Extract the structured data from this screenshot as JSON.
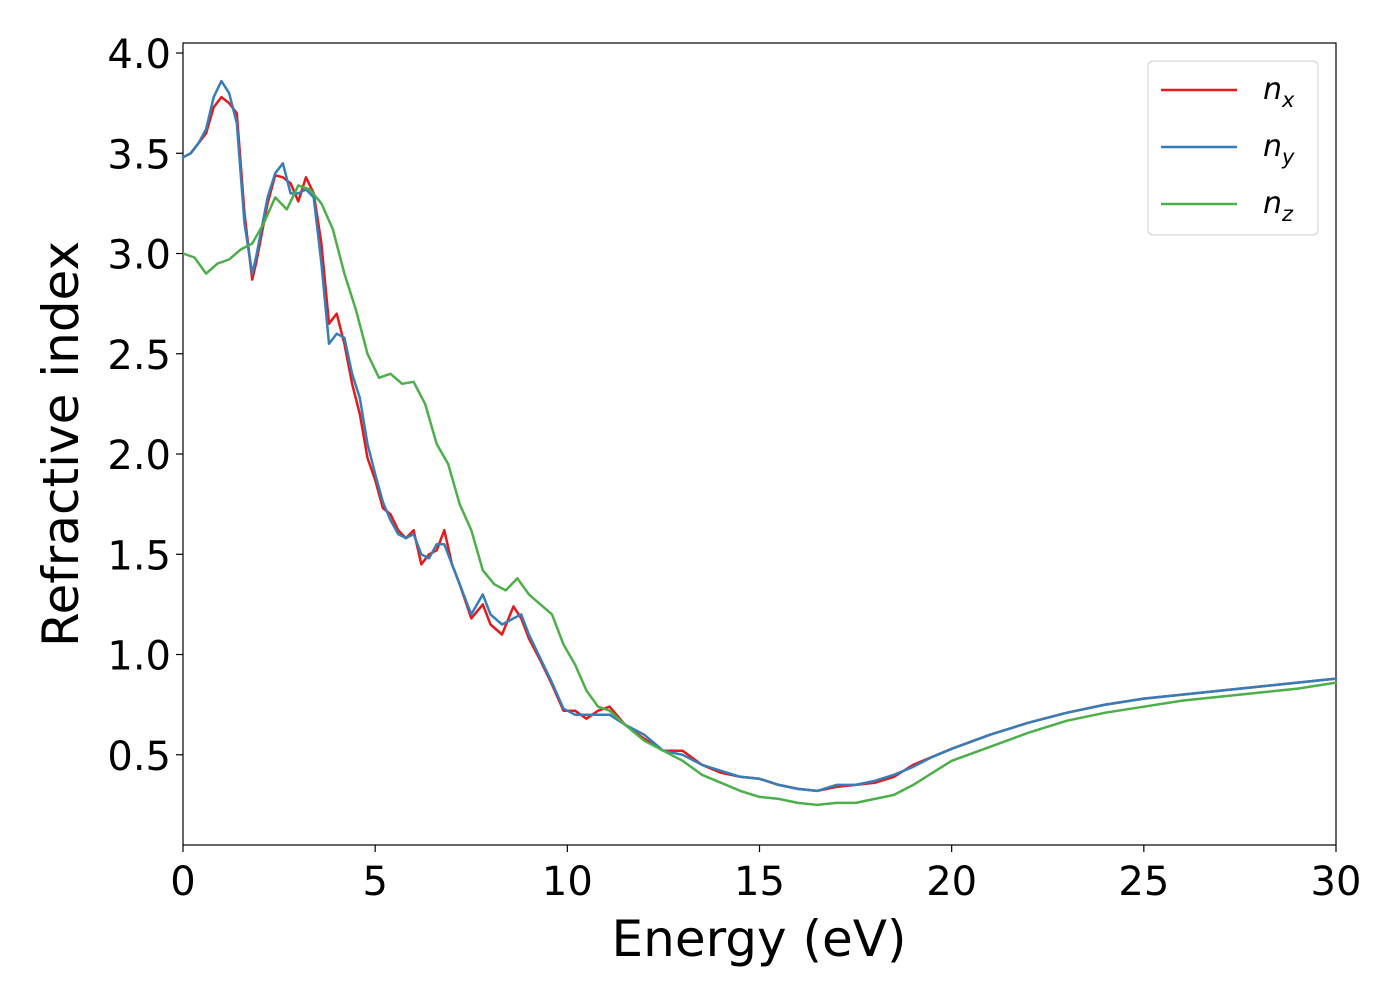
{
  "chart_data": {
    "type": "line",
    "xlabel": "Energy (eV)",
    "ylabel": "Refractive index",
    "xlim": [
      0,
      30
    ],
    "ylim": [
      0.05,
      4.05
    ],
    "xticks": [
      0,
      5,
      10,
      15,
      20,
      25,
      30
    ],
    "xtick_labels": [
      "0",
      "5",
      "10",
      "15",
      "20",
      "25",
      "30"
    ],
    "yticks": [
      0.5,
      1.0,
      1.5,
      2.0,
      2.5,
      3.0,
      3.5,
      4.0
    ],
    "ytick_labels": [
      "0.5",
      "1.0",
      "1.5",
      "2.0",
      "2.5",
      "3.0",
      "3.5",
      "4.0"
    ],
    "grid": false,
    "legend_position": "top-right",
    "series": [
      {
        "name": "n_x",
        "label_main": "n",
        "label_sub": "x",
        "color": "#e41a1c",
        "x": [
          0,
          0.2,
          0.4,
          0.6,
          0.8,
          1.0,
          1.2,
          1.4,
          1.6,
          1.8,
          1.9,
          2.0,
          2.2,
          2.4,
          2.6,
          2.8,
          3.0,
          3.2,
          3.4,
          3.6,
          3.8,
          4.0,
          4.2,
          4.4,
          4.6,
          4.8,
          5.0,
          5.2,
          5.4,
          5.6,
          5.8,
          6.0,
          6.2,
          6.4,
          6.6,
          6.8,
          7.0,
          7.2,
          7.5,
          7.8,
          8.0,
          8.3,
          8.6,
          8.8,
          9.0,
          9.3,
          9.6,
          9.9,
          10.2,
          10.5,
          10.8,
          11.1,
          11.5,
          12.0,
          12.5,
          13.0,
          13.5,
          14.0,
          14.5,
          15.0,
          15.5,
          16.0,
          16.5,
          17.0,
          17.5,
          18.0,
          18.5,
          19.0,
          19.5,
          20.0,
          21.0,
          22.0,
          23.0,
          24.0,
          25.0,
          26.0,
          27.0,
          28.0,
          29.0,
          30.0
        ],
        "y": [
          3.48,
          3.5,
          3.55,
          3.6,
          3.73,
          3.78,
          3.75,
          3.7,
          3.2,
          2.87,
          2.95,
          3.05,
          3.25,
          3.39,
          3.38,
          3.35,
          3.26,
          3.38,
          3.3,
          3.05,
          2.65,
          2.7,
          2.55,
          2.35,
          2.2,
          1.98,
          1.87,
          1.73,
          1.7,
          1.62,
          1.58,
          1.62,
          1.45,
          1.5,
          1.52,
          1.62,
          1.45,
          1.35,
          1.18,
          1.25,
          1.15,
          1.1,
          1.24,
          1.18,
          1.08,
          0.97,
          0.85,
          0.72,
          0.72,
          0.68,
          0.72,
          0.74,
          0.65,
          0.58,
          0.52,
          0.52,
          0.45,
          0.41,
          0.39,
          0.38,
          0.35,
          0.33,
          0.32,
          0.34,
          0.35,
          0.36,
          0.39,
          0.45,
          0.49,
          0.53,
          0.6,
          0.66,
          0.71,
          0.75,
          0.78,
          0.8,
          0.82,
          0.84,
          0.86,
          0.88
        ]
      },
      {
        "name": "n_y",
        "label_main": "n",
        "label_sub": "y",
        "color": "#377eb8",
        "x": [
          0,
          0.2,
          0.4,
          0.6,
          0.8,
          1.0,
          1.2,
          1.4,
          1.6,
          1.8,
          1.9,
          2.0,
          2.2,
          2.4,
          2.6,
          2.8,
          3.0,
          3.2,
          3.4,
          3.6,
          3.8,
          4.0,
          4.2,
          4.4,
          4.6,
          4.8,
          5.0,
          5.2,
          5.4,
          5.6,
          5.8,
          6.0,
          6.2,
          6.4,
          6.6,
          6.8,
          7.0,
          7.2,
          7.5,
          7.8,
          8.0,
          8.3,
          8.6,
          8.8,
          9.0,
          9.3,
          9.6,
          9.9,
          10.2,
          10.5,
          10.8,
          11.1,
          11.5,
          12.0,
          12.5,
          13.0,
          13.5,
          14.0,
          14.5,
          15.0,
          15.5,
          16.0,
          16.5,
          17.0,
          17.5,
          18.0,
          18.5,
          19.0,
          19.5,
          20.0,
          21.0,
          22.0,
          23.0,
          24.0,
          25.0,
          26.0,
          27.0,
          28.0,
          29.0,
          30.0
        ],
        "y": [
          3.48,
          3.5,
          3.55,
          3.62,
          3.78,
          3.86,
          3.8,
          3.65,
          3.15,
          2.9,
          2.98,
          3.08,
          3.28,
          3.4,
          3.45,
          3.3,
          3.3,
          3.32,
          3.28,
          2.95,
          2.55,
          2.6,
          2.58,
          2.4,
          2.28,
          2.05,
          1.9,
          1.76,
          1.67,
          1.6,
          1.58,
          1.6,
          1.5,
          1.48,
          1.55,
          1.55,
          1.45,
          1.35,
          1.2,
          1.3,
          1.2,
          1.15,
          1.18,
          1.2,
          1.1,
          0.98,
          0.86,
          0.73,
          0.7,
          0.7,
          0.7,
          0.7,
          0.65,
          0.6,
          0.52,
          0.5,
          0.45,
          0.42,
          0.39,
          0.38,
          0.35,
          0.33,
          0.32,
          0.35,
          0.35,
          0.37,
          0.4,
          0.44,
          0.49,
          0.53,
          0.6,
          0.66,
          0.71,
          0.75,
          0.78,
          0.8,
          0.82,
          0.84,
          0.86,
          0.88
        ]
      },
      {
        "name": "n_z",
        "label_main": "n",
        "label_sub": "z",
        "color": "#4daf4a",
        "x": [
          0,
          0.3,
          0.6,
          0.9,
          1.2,
          1.5,
          1.8,
          2.1,
          2.4,
          2.7,
          3.0,
          3.3,
          3.6,
          3.9,
          4.2,
          4.5,
          4.8,
          5.1,
          5.4,
          5.7,
          6.0,
          6.3,
          6.6,
          6.9,
          7.2,
          7.5,
          7.8,
          8.1,
          8.4,
          8.7,
          9.0,
          9.3,
          9.6,
          9.9,
          10.2,
          10.5,
          10.8,
          11.1,
          11.5,
          12.0,
          12.5,
          13.0,
          13.5,
          14.0,
          14.5,
          15.0,
          15.5,
          16.0,
          16.5,
          17.0,
          17.5,
          18.0,
          18.5,
          19.0,
          19.5,
          20.0,
          21.0,
          22.0,
          23.0,
          24.0,
          25.0,
          26.0,
          27.0,
          28.0,
          29.0,
          30.0
        ],
        "y": [
          3.0,
          2.98,
          2.9,
          2.95,
          2.97,
          3.02,
          3.05,
          3.15,
          3.28,
          3.22,
          3.34,
          3.32,
          3.25,
          3.12,
          2.9,
          2.72,
          2.5,
          2.38,
          2.4,
          2.35,
          2.36,
          2.25,
          2.05,
          1.95,
          1.75,
          1.62,
          1.42,
          1.35,
          1.32,
          1.38,
          1.3,
          1.25,
          1.2,
          1.05,
          0.95,
          0.82,
          0.74,
          0.72,
          0.65,
          0.57,
          0.52,
          0.47,
          0.4,
          0.36,
          0.32,
          0.29,
          0.28,
          0.26,
          0.25,
          0.26,
          0.26,
          0.28,
          0.3,
          0.35,
          0.41,
          0.47,
          0.54,
          0.61,
          0.67,
          0.71,
          0.74,
          0.77,
          0.79,
          0.81,
          0.83,
          0.86
        ]
      }
    ]
  }
}
